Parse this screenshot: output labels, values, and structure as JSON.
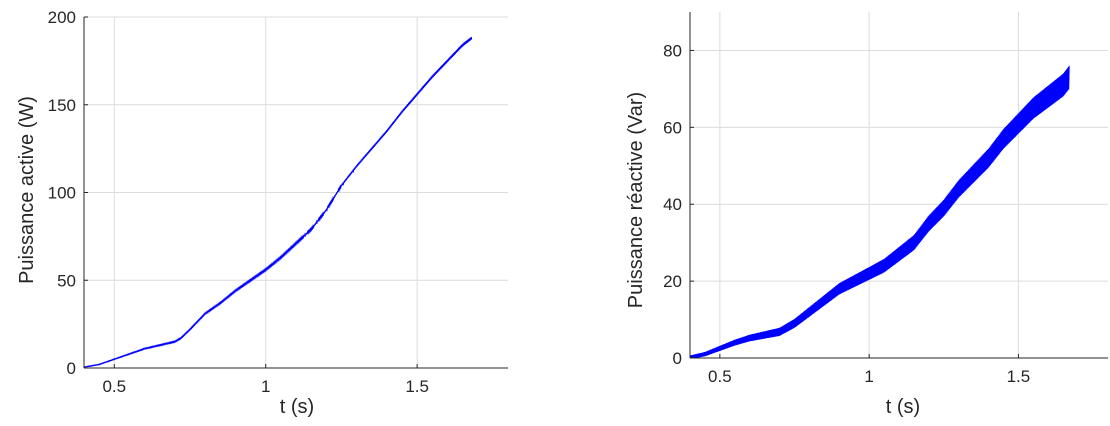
{
  "chart_data": [
    {
      "type": "line",
      "title": "",
      "xlabel": "t (s)",
      "ylabel": "Puissance active (W)",
      "xlim": [
        0.4,
        1.8
      ],
      "ylim": [
        0,
        200
      ],
      "xticks": [
        0.5,
        1,
        1.5
      ],
      "xtick_labels": [
        "0.5",
        "1",
        "1.5"
      ],
      "yticks": [
        0,
        50,
        100,
        150,
        200
      ],
      "ytick_labels": [
        "0",
        "50",
        "100",
        "150",
        "200"
      ],
      "grid": true,
      "color": "#0000ff",
      "series": [
        {
          "ripple": 0.8,
          "x": [
            0.4,
            0.45,
            0.5,
            0.55,
            0.6,
            0.65,
            0.7,
            0.72,
            0.75,
            0.8,
            0.85,
            0.9,
            0.95,
            1.0,
            1.05,
            1.1,
            1.15,
            1.2,
            1.25,
            1.3,
            1.35,
            1.4,
            1.45,
            1.5,
            1.55,
            1.6,
            1.65,
            1.68
          ],
          "y": [
            0.5,
            2,
            5,
            8,
            11,
            13,
            15,
            17,
            22,
            31,
            37,
            44,
            50,
            56,
            63,
            71,
            79,
            90,
            104,
            115,
            125,
            135,
            146,
            156,
            166,
            175,
            184,
            188
          ]
        }
      ]
    },
    {
      "type": "line",
      "title": "",
      "xlabel": "t (s)",
      "ylabel": "Puissance réactive (Var)",
      "xlim": [
        0.4,
        1.8
      ],
      "ylim": [
        0,
        90
      ],
      "xticks": [
        0.5,
        1,
        1.5
      ],
      "xtick_labels": [
        "0.5",
        "1",
        "1.5"
      ],
      "yticks": [
        0,
        20,
        40,
        60,
        80
      ],
      "ytick_labels": [
        "0",
        "20",
        "40",
        "60",
        "80"
      ],
      "grid": true,
      "color": "#0000ff",
      "series": [
        {
          "ripple": 3.0,
          "x": [
            0.4,
            0.45,
            0.5,
            0.55,
            0.6,
            0.65,
            0.7,
            0.75,
            0.8,
            0.85,
            0.9,
            0.95,
            1.0,
            1.05,
            1.1,
            1.15,
            1.2,
            1.25,
            1.3,
            1.35,
            1.4,
            1.45,
            1.5,
            1.55,
            1.6,
            1.65,
            1.67
          ],
          "y": [
            0.2,
            1,
            2.5,
            4,
            5.2,
            6,
            6.8,
            9,
            12,
            15,
            18,
            20,
            22,
            24,
            27,
            30,
            35,
            39,
            44,
            48,
            52,
            57,
            61,
            65,
            68,
            71,
            73
          ]
        }
      ]
    }
  ]
}
